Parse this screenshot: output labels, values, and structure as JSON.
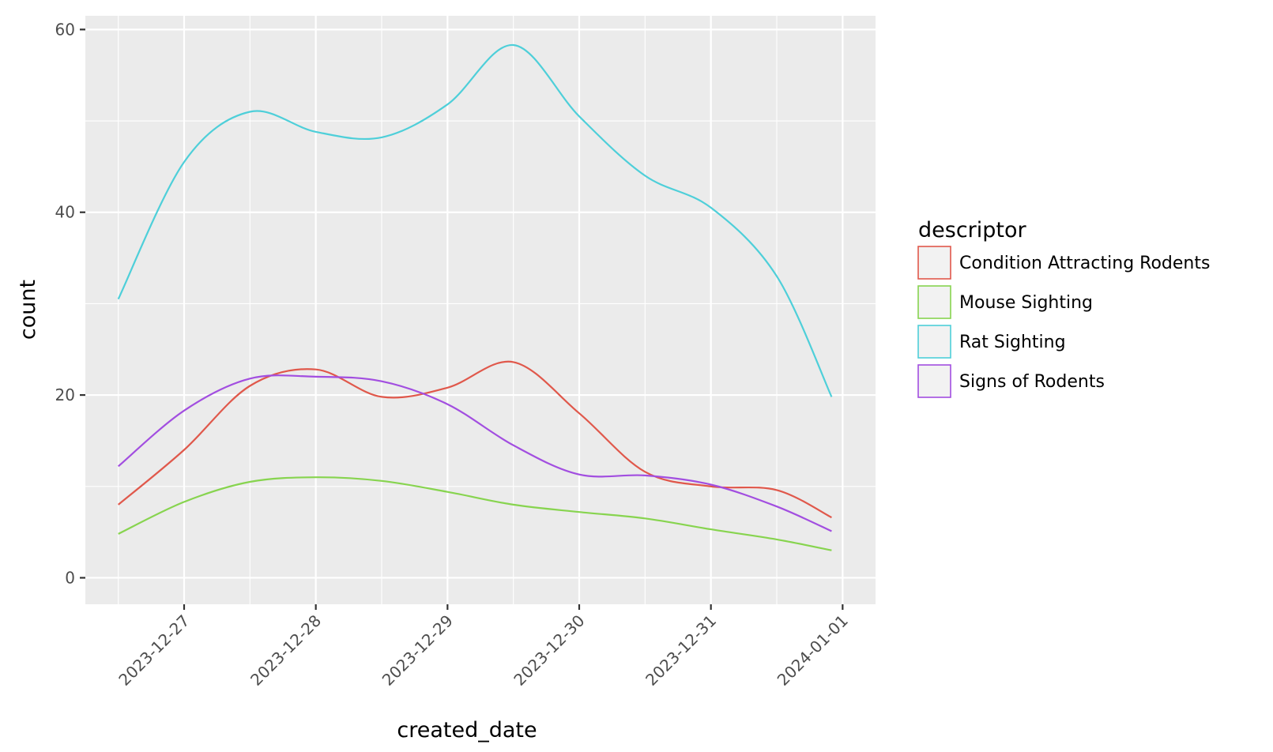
{
  "chart_data": {
    "type": "line",
    "title": "",
    "xlabel": "created_date",
    "ylabel": "count",
    "x_type": "date",
    "x_ticks": [
      "2023-12-27",
      "2023-12-28",
      "2023-12-29",
      "2023-12-30",
      "2023-12-31",
      "2024-01-01"
    ],
    "y_ticks": [
      0,
      20,
      40,
      60
    ],
    "ylim": [
      -2.9,
      61.5
    ],
    "xlim": [
      "2023-12-26 06:00",
      "2024-01-01 06:00"
    ],
    "grid": true,
    "legend": {
      "title": "descriptor",
      "position": "right"
    },
    "x": [
      "2023-12-26 12:00",
      "2023-12-27 00:00",
      "2023-12-27 12:00",
      "2023-12-28 00:00",
      "2023-12-28 12:00",
      "2023-12-29 00:00",
      "2023-12-29 12:00",
      "2023-12-30 00:00",
      "2023-12-30 12:00",
      "2023-12-31 00:00",
      "2023-12-31 12:00",
      "2023-12-31 22:00"
    ],
    "series": [
      {
        "name": "Condition Attracting Rodents",
        "color": "#e0584b",
        "values": [
          8.0,
          14.0,
          21.0,
          22.8,
          19.8,
          20.8,
          23.6,
          18.0,
          11.6,
          10.0,
          9.6,
          6.6
        ]
      },
      {
        "name": "Mouse Sighting",
        "color": "#87d44f",
        "values": [
          4.8,
          8.3,
          10.5,
          11.0,
          10.6,
          9.4,
          8.0,
          7.2,
          6.5,
          5.3,
          4.2,
          3.0
        ]
      },
      {
        "name": "Rat Sighting",
        "color": "#4ecfd9",
        "values": [
          30.5,
          45.5,
          51.0,
          48.8,
          48.2,
          51.8,
          58.3,
          50.5,
          44.0,
          40.5,
          33.0,
          19.8
        ]
      },
      {
        "name": "Signs of Rodents",
        "color": "#a24ee0",
        "values": [
          12.2,
          18.3,
          21.8,
          22.0,
          21.5,
          19.0,
          14.5,
          11.3,
          11.2,
          10.2,
          7.8,
          5.1
        ]
      }
    ]
  }
}
